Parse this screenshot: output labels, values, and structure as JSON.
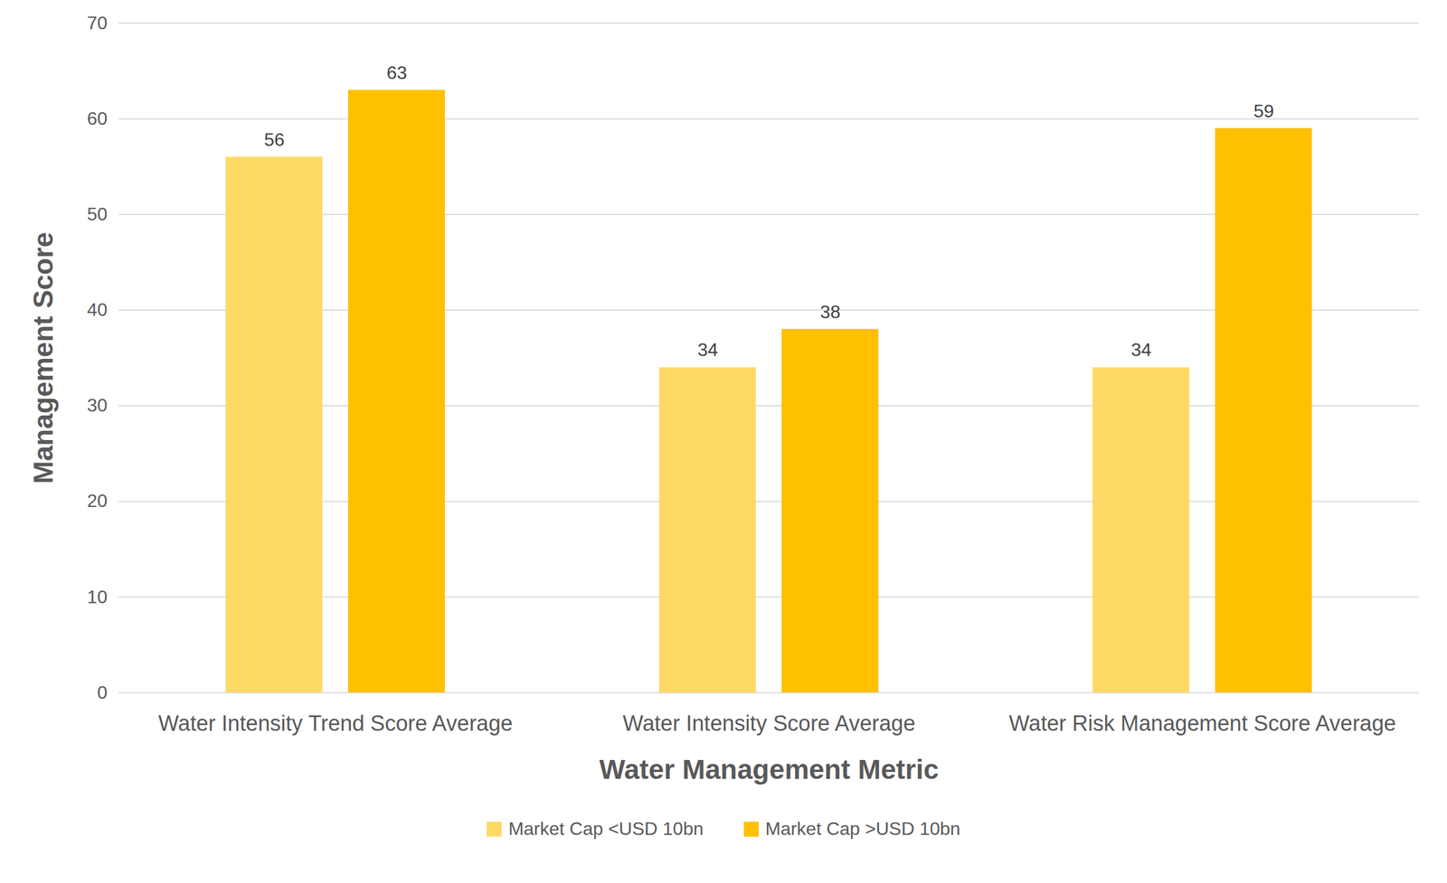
{
  "chart_data": {
    "type": "bar",
    "x_label": "Water Management Metric",
    "y_label": "Management Score",
    "categories": [
      "Water Intensity Trend Score Average",
      "Water Intensity Score Average",
      "Water Risk Management Score Average"
    ],
    "series": [
      {
        "name": "Market Cap <USD 10bn",
        "color": "#FFD966",
        "values": [
          56,
          34,
          34
        ]
      },
      {
        "name": "Market Cap >USD 10bn",
        "color": "#FFC000",
        "values": [
          63,
          38,
          59
        ]
      }
    ],
    "ylim": [
      0,
      70
    ],
    "yticks": [
      0,
      10,
      20,
      30,
      40,
      50,
      60,
      70
    ],
    "grid": true,
    "legend": "bottom",
    "data_labels": true
  }
}
